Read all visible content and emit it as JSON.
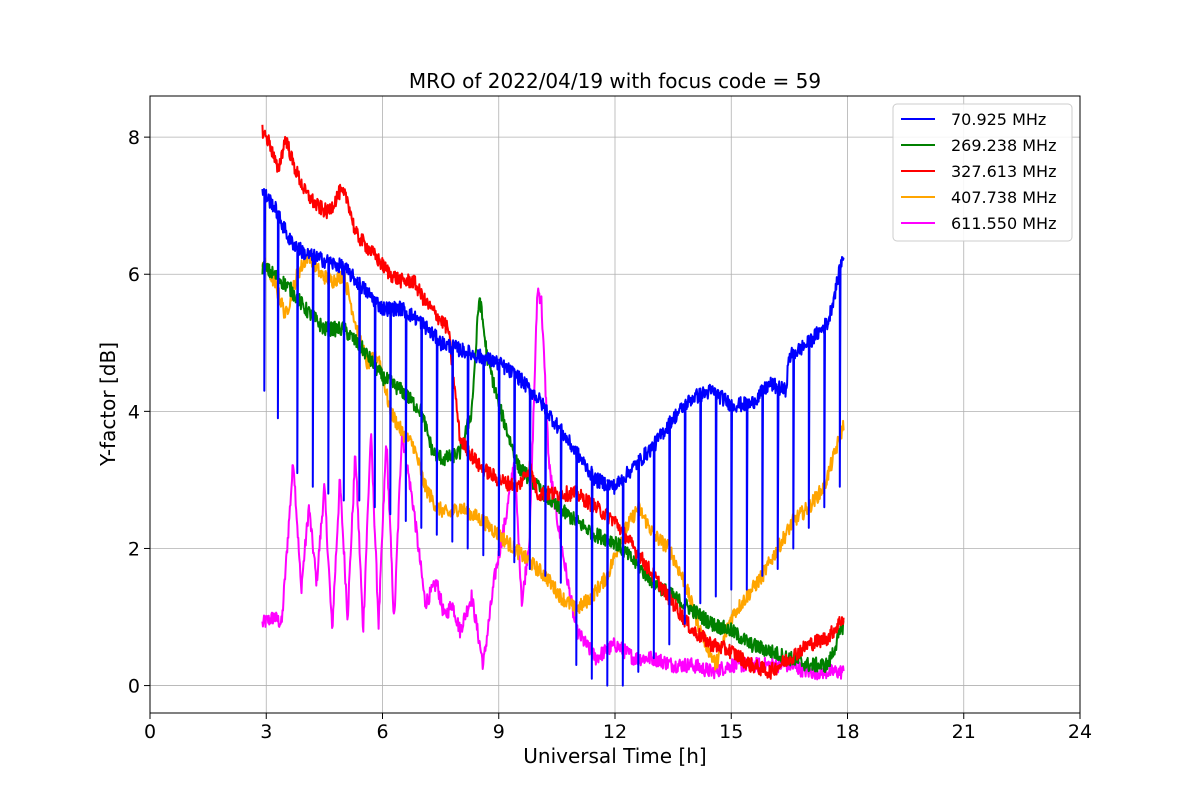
{
  "chart_data": {
    "type": "line",
    "title": "MRO of 2022/04/19 with focus code = 59",
    "xlabel": "Universal Time [h]",
    "ylabel": "Y-factor [dB]",
    "xlim": [
      0,
      24
    ],
    "ylim": [
      -0.4,
      8.6
    ],
    "xticks": [
      0,
      3,
      6,
      9,
      12,
      15,
      18,
      21,
      24
    ],
    "yticks": [
      0,
      2,
      4,
      6,
      8
    ],
    "grid": true,
    "legend_position": "top-right",
    "series": [
      {
        "name": " 70.925 MHz",
        "color": "#0000ff",
        "x": [
          2.9,
          3.2,
          3.6,
          4.0,
          4.5,
          5.0,
          5.5,
          6.0,
          6.5,
          7.0,
          7.5,
          8.0,
          8.5,
          9.0,
          9.5,
          10.0,
          10.5,
          11.0,
          11.5,
          12.0,
          12.5,
          13.0,
          13.5,
          14.0,
          14.5,
          15.0,
          15.5,
          16.0,
          16.4,
          16.5,
          17.0,
          17.5,
          17.9
        ],
        "y": [
          7.2,
          7.0,
          6.5,
          6.3,
          6.2,
          6.1,
          5.8,
          5.5,
          5.5,
          5.3,
          5.0,
          4.9,
          4.8,
          4.7,
          4.5,
          4.2,
          3.8,
          3.4,
          3.0,
          2.9,
          3.2,
          3.5,
          3.9,
          4.2,
          4.3,
          4.1,
          4.1,
          4.4,
          4.3,
          4.8,
          5.0,
          5.3,
          6.3
        ],
        "dips": [
          [
            2.95,
            4.3
          ],
          [
            3.3,
            3.9
          ],
          [
            3.8,
            3.1
          ],
          [
            4.2,
            2.9
          ],
          [
            4.6,
            2.8
          ],
          [
            5.0,
            2.7
          ],
          [
            5.4,
            2.7
          ],
          [
            5.8,
            2.6
          ],
          [
            6.2,
            2.5
          ],
          [
            6.6,
            2.4
          ],
          [
            7.0,
            2.3
          ],
          [
            7.4,
            2.2
          ],
          [
            7.8,
            2.1
          ],
          [
            8.2,
            2.0
          ],
          [
            8.6,
            1.9
          ],
          [
            9.0,
            1.9
          ],
          [
            9.4,
            1.8
          ],
          [
            9.8,
            1.7
          ],
          [
            10.2,
            1.6
          ],
          [
            10.6,
            1.5
          ],
          [
            11.0,
            0.3
          ],
          [
            11.4,
            0.1
          ],
          [
            11.8,
            0.0
          ],
          [
            12.2,
            0.0
          ],
          [
            12.6,
            0.2
          ],
          [
            13.0,
            0.4
          ],
          [
            13.4,
            0.6
          ],
          [
            13.8,
            0.9
          ],
          [
            14.2,
            1.2
          ],
          [
            14.6,
            1.3
          ],
          [
            15.0,
            1.4
          ],
          [
            15.4,
            1.4
          ],
          [
            15.8,
            1.6
          ],
          [
            16.2,
            1.7
          ],
          [
            16.6,
            2.0
          ],
          [
            17.0,
            2.3
          ],
          [
            17.4,
            2.6
          ],
          [
            17.8,
            2.9
          ]
        ]
      },
      {
        "name": "269.238 MHz",
        "color": "#008000",
        "x": [
          2.9,
          3.2,
          3.6,
          4.0,
          4.5,
          5.0,
          5.5,
          6.0,
          6.5,
          7.0,
          7.3,
          7.6,
          8.0,
          8.3,
          8.5,
          8.7,
          9.0,
          9.5,
          10.0,
          10.5,
          11.0,
          11.5,
          12.0,
          12.5,
          13.0,
          13.5,
          14.0,
          14.5,
          15.0,
          15.5,
          16.0,
          16.5,
          17.0,
          17.5,
          17.9
        ],
        "y": [
          6.1,
          6.0,
          5.8,
          5.5,
          5.2,
          5.2,
          4.9,
          4.5,
          4.3,
          4.0,
          3.4,
          3.3,
          3.4,
          4.0,
          5.7,
          4.8,
          4.1,
          3.2,
          2.9,
          2.6,
          2.4,
          2.2,
          2.1,
          1.8,
          1.5,
          1.3,
          1.1,
          0.9,
          0.8,
          0.6,
          0.5,
          0.4,
          0.3,
          0.3,
          0.9
        ]
      },
      {
        "name": "327.613 MHz",
        "color": "#ff0000",
        "x": [
          2.9,
          3.1,
          3.3,
          3.5,
          3.7,
          4.0,
          4.3,
          4.6,
          4.9,
          5.1,
          5.3,
          5.6,
          5.9,
          6.2,
          6.5,
          6.8,
          7.1,
          7.4,
          7.7,
          8.0,
          8.5,
          9.0,
          9.5,
          9.8,
          10.0,
          10.5,
          11.0,
          11.5,
          12.0,
          12.5,
          13.0,
          13.5,
          14.0,
          14.5,
          15.0,
          15.5,
          16.0,
          16.5,
          17.0,
          17.5,
          17.9
        ],
        "y": [
          8.1,
          7.9,
          7.5,
          8.0,
          7.6,
          7.2,
          7.0,
          6.9,
          7.2,
          7.1,
          6.6,
          6.4,
          6.2,
          6.0,
          5.9,
          5.9,
          5.6,
          5.4,
          5.2,
          3.6,
          3.2,
          3.0,
          2.9,
          3.2,
          2.8,
          2.8,
          2.8,
          2.6,
          2.4,
          2.0,
          1.6,
          1.2,
          0.8,
          0.6,
          0.5,
          0.3,
          0.2,
          0.4,
          0.6,
          0.7,
          1.0
        ]
      },
      {
        "name": "407.738 MHz",
        "color": "#ffa500",
        "x": [
          2.9,
          3.2,
          3.5,
          3.8,
          4.1,
          4.4,
          4.7,
          5.0,
          5.3,
          5.6,
          5.9,
          6.2,
          6.5,
          6.8,
          7.1,
          7.4,
          7.7,
          8.0,
          8.3,
          8.6,
          9.0,
          9.4,
          9.8,
          10.2,
          10.6,
          11.0,
          11.4,
          11.8,
          12.2,
          12.6,
          13.0,
          13.4,
          13.8,
          14.2,
          14.6,
          15.0,
          15.4,
          15.8,
          16.2,
          16.6,
          17.0,
          17.4,
          17.9
        ],
        "y": [
          6.2,
          5.9,
          5.4,
          6.0,
          6.3,
          6.0,
          5.9,
          6.0,
          5.3,
          4.7,
          4.8,
          4.0,
          3.7,
          3.5,
          2.9,
          2.6,
          2.5,
          2.6,
          2.5,
          2.4,
          2.2,
          2.0,
          1.8,
          1.6,
          1.3,
          1.1,
          1.3,
          1.6,
          2.2,
          2.6,
          2.2,
          2.0,
          1.5,
          0.8,
          0.3,
          1.0,
          1.3,
          1.6,
          2.0,
          2.4,
          2.6,
          2.9,
          3.8
        ]
      },
      {
        "name": "611.550 MHz",
        "color": "#ff00ff",
        "x": [
          2.9,
          3.2,
          3.4,
          3.7,
          3.9,
          4.1,
          4.3,
          4.5,
          4.7,
          4.9,
          5.1,
          5.3,
          5.5,
          5.7,
          5.9,
          6.1,
          6.3,
          6.5,
          6.8,
          7.1,
          7.4,
          7.6,
          7.8,
          8.0,
          8.3,
          8.6,
          8.9,
          9.2,
          9.4,
          9.6,
          9.8,
          10.0,
          10.1,
          10.3,
          10.6,
          11.0,
          11.5,
          12.0,
          12.5,
          13.0,
          13.5,
          14.0,
          14.5,
          15.0,
          15.5,
          16.0,
          16.5,
          17.0,
          17.5,
          17.9
        ],
        "y": [
          0.9,
          1.0,
          0.9,
          3.3,
          1.4,
          2.6,
          1.5,
          2.9,
          0.8,
          3.0,
          1.0,
          3.4,
          0.8,
          3.7,
          0.9,
          3.6,
          0.9,
          3.7,
          2.6,
          1.2,
          1.5,
          1.0,
          1.2,
          0.8,
          1.3,
          0.3,
          1.6,
          2.5,
          3.3,
          1.2,
          2.2,
          5.8,
          5.6,
          3.2,
          2.1,
          0.8,
          0.4,
          0.6,
          0.4,
          0.4,
          0.3,
          0.3,
          0.2,
          0.3,
          0.3,
          0.3,
          0.3,
          0.2,
          0.2,
          0.2
        ]
      }
    ]
  }
}
